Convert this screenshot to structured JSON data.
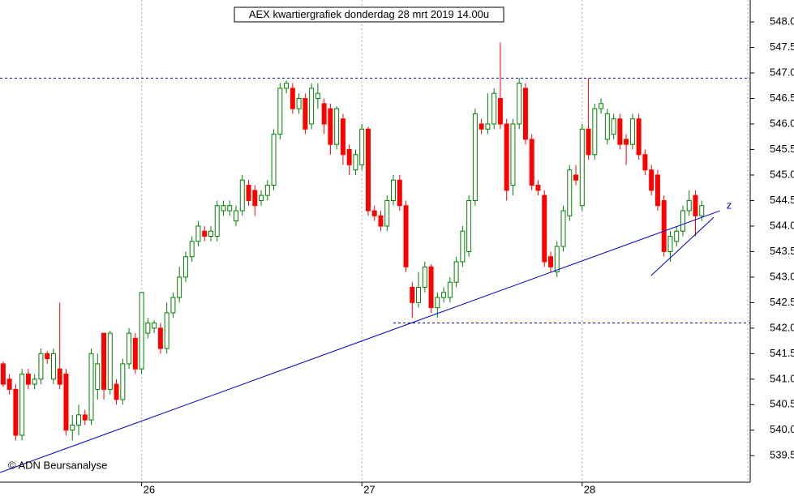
{
  "chart_data": {
    "type": "candlestick",
    "title": "AEX kwartiergrafiek donderdag 28 mrt 2019 14.00u",
    "source": "© ADN Beursanalyse",
    "categories": [
      null,
      null,
      null,
      null,
      null,
      null,
      null,
      null,
      null,
      null,
      null,
      null,
      null,
      null,
      null,
      null,
      null,
      null,
      null,
      null,
      null,
      null,
      "26",
      null,
      null,
      null,
      null,
      null,
      null,
      null,
      null,
      null,
      null,
      null,
      null,
      null,
      null,
      null,
      null,
      null,
      null,
      null,
      null,
      null,
      null,
      null,
      null,
      null,
      null,
      null,
      null,
      null,
      null,
      null,
      null,
      null,
      null,
      "27",
      null,
      null,
      null,
      null,
      null,
      null,
      null,
      null,
      null,
      null,
      null,
      null,
      null,
      null,
      null,
      null,
      null,
      null,
      null,
      null,
      null,
      null,
      null,
      null,
      null,
      null,
      null,
      null,
      null,
      null,
      null,
      null,
      null,
      null,
      "28",
      null,
      null,
      null,
      null,
      null,
      null,
      null,
      null,
      null,
      null,
      null,
      null,
      null,
      null,
      null,
      null,
      null,
      null,
      null
    ],
    "open": [
      541.3,
      541.0,
      540.8,
      539.9,
      541.1,
      540.9,
      541.0,
      541.5,
      541.0,
      541.2,
      541.1,
      540.0,
      540.1,
      540.3,
      540.2,
      540.8,
      541.9,
      540.8,
      540.9,
      540.6,
      541.3,
      541.8,
      541.2,
      541.9,
      542.0,
      542.0,
      541.6,
      542.3,
      542.6,
      543.0,
      543.4,
      543.7,
      543.9,
      543.8,
      543.8,
      544.3,
      544.3,
      544.1,
      544.3,
      544.8,
      544.7,
      544.5,
      544.6,
      544.8,
      545.8,
      546.7,
      546.7,
      546.3,
      546.5,
      546.0,
      546.5,
      546.4,
      546.3,
      545.6,
      546.1,
      545.5,
      545.1,
      545.2,
      545.9,
      544.3,
      544.2,
      544.0,
      544.5,
      544.9,
      544.4,
      542.8,
      542.5,
      542.8,
      543.2,
      542.4,
      542.6,
      542.6,
      542.9,
      543.3,
      543.5,
      544.5,
      546.0,
      545.9,
      546.0,
      546.5,
      546.0,
      544.8,
      546.0,
      546.7,
      545.7,
      544.8,
      544.6,
      543.4,
      543.1,
      543.6,
      544.2,
      545.0,
      544.4,
      545.9,
      545.4,
      546.3,
      545.7,
      545.8,
      546.1,
      545.7,
      545.6,
      546.1,
      545.4,
      545.1,
      545.0,
      544.5,
      543.5,
      543.7,
      543.9,
      544.3,
      544.6,
      544.2
    ],
    "high": [
      541.35,
      541.1,
      540.9,
      541.2,
      541.2,
      541.1,
      541.6,
      541.55,
      541.6,
      542.5,
      541.2,
      540.3,
      540.5,
      540.4,
      541.6,
      541.5,
      541.9,
      541.95,
      541.0,
      541.4,
      542.0,
      541.9,
      542.7,
      542.2,
      542.15,
      542.1,
      542.5,
      542.7,
      543.2,
      543.5,
      543.8,
      544.1,
      544.0,
      544.0,
      544.5,
      544.5,
      544.5,
      544.4,
      545.0,
      544.9,
      544.8,
      544.7,
      544.9,
      545.9,
      546.8,
      546.85,
      546.8,
      546.6,
      546.6,
      546.8,
      546.8,
      546.5,
      546.4,
      546.35,
      546.2,
      545.6,
      545.5,
      546.0,
      545.95,
      544.4,
      544.3,
      544.6,
      545.0,
      545.0,
      544.5,
      542.9,
      543.1,
      543.3,
      543.25,
      542.7,
      542.8,
      543.0,
      543.4,
      544.0,
      544.6,
      546.3,
      546.1,
      546.6,
      546.7,
      547.6,
      546.1,
      546.1,
      546.9,
      546.8,
      545.8,
      544.9,
      544.7,
      543.5,
      543.7,
      544.4,
      545.2,
      545.2,
      546.0,
      546.9,
      546.4,
      546.5,
      546.3,
      546.2,
      546.2,
      545.8,
      546.2,
      546.2,
      545.5,
      545.2,
      545.1,
      544.6,
      543.9,
      544.0,
      544.4,
      544.7,
      544.7,
      544.5
    ],
    "low": [
      540.85,
      540.7,
      539.8,
      539.8,
      540.8,
      540.8,
      540.9,
      541.3,
      540.9,
      540.8,
      539.9,
      539.8,
      539.9,
      540.1,
      540.1,
      540.6,
      540.6,
      540.7,
      540.5,
      540.5,
      541.2,
      541.1,
      541.1,
      541.8,
      541.9,
      541.5,
      541.5,
      542.2,
      542.5,
      542.9,
      543.3,
      543.6,
      543.7,
      543.7,
      543.7,
      544.2,
      544.2,
      544.0,
      544.2,
      544.4,
      544.2,
      544.4,
      544.5,
      544.7,
      545.7,
      546.6,
      546.2,
      546.2,
      545.8,
      545.9,
      546.3,
      545.8,
      545.4,
      545.5,
      545.2,
      545.0,
      545.0,
      545.1,
      544.2,
      544.1,
      543.9,
      543.9,
      544.4,
      544.3,
      543.1,
      542.2,
      542.4,
      542.7,
      542.3,
      542.2,
      542.5,
      542.5,
      542.8,
      543.2,
      543.4,
      544.4,
      545.8,
      545.8,
      545.9,
      545.9,
      544.5,
      544.6,
      545.9,
      545.6,
      544.7,
      544.6,
      543.2,
      543.1,
      543.0,
      543.5,
      544.1,
      544.8,
      544.3,
      545.3,
      545.3,
      546.2,
      545.6,
      545.7,
      545.5,
      545.2,
      545.5,
      545.3,
      545.0,
      544.6,
      544.3,
      543.4,
      543.3,
      543.6,
      543.8,
      544.2,
      543.8,
      544.1
    ],
    "close": [
      540.9,
      540.8,
      539.9,
      541.1,
      540.9,
      541.0,
      541.5,
      541.4,
      541.5,
      540.9,
      540.0,
      540.1,
      540.3,
      540.2,
      541.5,
      541.3,
      540.8,
      541.9,
      540.6,
      541.3,
      541.9,
      541.2,
      542.7,
      542.1,
      542.1,
      541.6,
      542.3,
      542.6,
      543.0,
      543.4,
      543.7,
      544.0,
      543.8,
      543.9,
      544.4,
      544.4,
      544.4,
      544.3,
      544.9,
      544.5,
      544.4,
      544.6,
      544.8,
      545.8,
      546.7,
      546.8,
      546.3,
      546.5,
      545.9,
      546.7,
      546.6,
      546.0,
      545.6,
      546.3,
      545.4,
      545.2,
      545.4,
      545.9,
      544.3,
      544.2,
      544.0,
      544.5,
      544.9,
      544.4,
      543.2,
      542.5,
      542.8,
      543.2,
      542.4,
      542.6,
      542.7,
      542.9,
      543.3,
      543.9,
      544.5,
      546.2,
      545.9,
      546.0,
      546.6,
      546.0,
      544.7,
      546.0,
      546.8,
      545.7,
      544.8,
      544.7,
      543.3,
      543.2,
      543.6,
      544.3,
      545.1,
      544.9,
      545.9,
      545.4,
      546.3,
      546.4,
      546.2,
      546.1,
      545.6,
      545.6,
      546.1,
      545.4,
      545.1,
      544.7,
      544.4,
      543.5,
      543.8,
      543.9,
      544.3,
      544.5,
      544.2,
      544.4
    ],
    "up_color": "#008000",
    "down_color": "#ff0000",
    "line_color": "#0000c0",
    "hlines": [
      {
        "y": 546.9,
        "from": -0.5
      },
      {
        "y": 542.1,
        "from": 62
      }
    ],
    "trendlines": [
      {
        "x": [
          -0.5,
          113.9
        ],
        "y": [
          539.17,
          544.3
        ]
      },
      {
        "x": [
          102.96,
          112.9
        ],
        "y": [
          543.03,
          544.17
        ]
      }
    ],
    "annotation": "z",
    "xlim": [
      -0.5,
      118.7
    ],
    "ylim": [
      538.98,
      548.43
    ],
    "yticks": [
      539.5,
      {
        "value": 540.0,
        "label": "540.0"
      },
      540.5,
      {
        "value": 541.0,
        "label": "541.0"
      },
      541.5,
      {
        "value": 542.0,
        "label": "542.0"
      },
      542.5,
      {
        "value": 543.0,
        "label": "543.0"
      },
      543.5,
      {
        "value": 544.0,
        "label": "544.0"
      },
      544.5,
      {
        "value": 545.0,
        "label": "545.0"
      },
      545.5,
      {
        "value": 546.0,
        "label": "546.0"
      },
      546.5,
      {
        "value": 547.0,
        "label": "547.0"
      },
      547.5,
      {
        "value": 548.0,
        "label": "548.0"
      }
    ],
    "grid": true
  }
}
